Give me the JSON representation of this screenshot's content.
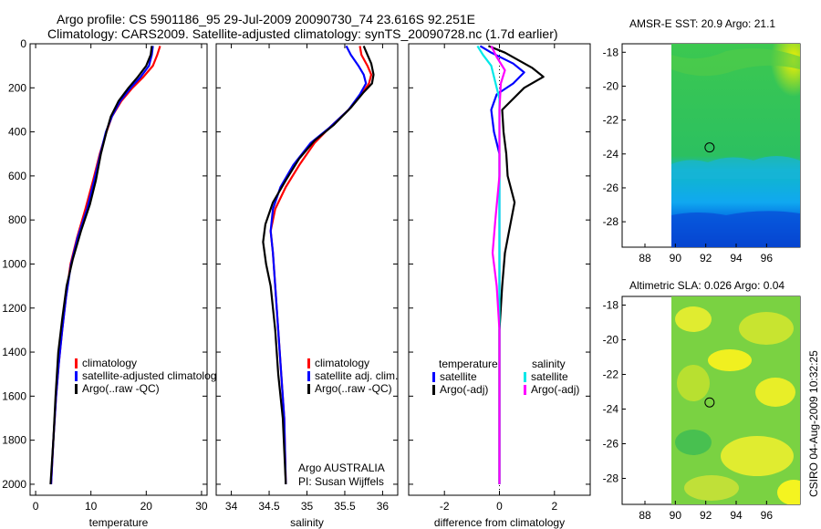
{
  "title": {
    "line1": "Argo profile: CS 5901186_95 29-Jul-2009 20090730_74 23.616S 92.251E",
    "line2": "Climatology: CARS2009. Satellite-adjusted climatology: synTS_20090728.nc (1.7d earlier)"
  },
  "side_stamp": "CSIRO 04-Aug-2009 10:32:25",
  "colors": {
    "red": "#ff0000",
    "blue": "#0000ff",
    "black": "#000000",
    "cyan": "#00e8e8",
    "magenta": "#ff00ff"
  },
  "chart_data": [
    {
      "id": "temperature",
      "type": "line",
      "xlabel": "temperature",
      "xlim": [
        -1,
        31
      ],
      "ylim": [
        2050,
        0
      ],
      "xticks": [
        0,
        10,
        20,
        30
      ],
      "yticks": [
        0,
        200,
        400,
        600,
        800,
        1000,
        1200,
        1400,
        1600,
        1800,
        2000
      ],
      "legend": {
        "placement": "lower-right",
        "entries": [
          {
            "label": "climatology",
            "color": "red"
          },
          {
            "label": "satellite-adjusted climatolog",
            "color": "blue"
          },
          {
            "label": "Argo(..raw -QC)",
            "color": "black"
          }
        ]
      },
      "series": [
        {
          "name": "climatology",
          "color": "red",
          "points": [
            [
              22.5,
              10
            ],
            [
              22.0,
              50
            ],
            [
              21.2,
              100
            ],
            [
              19.5,
              150
            ],
            [
              17.5,
              200
            ],
            [
              15.5,
              260
            ],
            [
              13.8,
              330
            ],
            [
              12.8,
              400
            ],
            [
              11.6,
              500
            ],
            [
              10.4,
              620
            ],
            [
              9.0,
              750
            ],
            [
              7.5,
              880
            ],
            [
              6.3,
              1000
            ],
            [
              5.5,
              1150
            ],
            [
              4.8,
              1300
            ],
            [
              4.2,
              1450
            ],
            [
              3.7,
              1600
            ],
            [
              3.2,
              1800
            ],
            [
              2.8,
              2000
            ]
          ]
        },
        {
          "name": "satellite-adjusted climatology",
          "color": "blue",
          "points": [
            [
              21.2,
              10
            ],
            [
              21.0,
              50
            ],
            [
              20.5,
              100
            ],
            [
              19.0,
              150
            ],
            [
              17.2,
              200
            ],
            [
              15.3,
              260
            ],
            [
              13.8,
              330
            ],
            [
              12.7,
              400
            ],
            [
              11.7,
              500
            ],
            [
              10.6,
              620
            ],
            [
              9.3,
              750
            ],
            [
              7.6,
              880
            ],
            [
              6.4,
              1000
            ],
            [
              5.5,
              1150
            ],
            [
              4.8,
              1300
            ],
            [
              4.2,
              1450
            ],
            [
              3.7,
              1600
            ],
            [
              3.2,
              1800
            ],
            [
              2.8,
              2000
            ]
          ]
        },
        {
          "name": "Argo(..raw -QC)",
          "color": "black",
          "points": [
            [
              21.0,
              10
            ],
            [
              20.8,
              50
            ],
            [
              20.0,
              100
            ],
            [
              18.5,
              150
            ],
            [
              16.8,
              200
            ],
            [
              15.0,
              260
            ],
            [
              13.6,
              330
            ],
            [
              12.8,
              400
            ],
            [
              11.8,
              500
            ],
            [
              10.9,
              620
            ],
            [
              9.8,
              730
            ],
            [
              8.2,
              850
            ],
            [
              6.7,
              980
            ],
            [
              5.6,
              1100
            ],
            [
              4.8,
              1250
            ],
            [
              4.1,
              1400
            ],
            [
              3.6,
              1600
            ],
            [
              3.2,
              1800
            ],
            [
              2.7,
              2000
            ]
          ]
        }
      ]
    },
    {
      "id": "salinity",
      "type": "line",
      "xlabel": "salinity",
      "xlim": [
        33.8,
        36.2
      ],
      "ylim": [
        2050,
        0
      ],
      "xticks": [
        34,
        34.5,
        35,
        35.5,
        36
      ],
      "annotations": [
        "Argo AUSTRALIA",
        "PI: Susan Wijffels"
      ],
      "legend": {
        "placement": "lower-right",
        "entries": [
          {
            "label": "climatology",
            "color": "red"
          },
          {
            "label": "satellite adj. clim.",
            "color": "blue"
          },
          {
            "label": "Argo(..raw -QC)",
            "color": "black"
          }
        ]
      },
      "series": [
        {
          "name": "climatology",
          "color": "red",
          "points": [
            [
              35.7,
              10
            ],
            [
              35.72,
              50
            ],
            [
              35.8,
              100
            ],
            [
              35.85,
              140
            ],
            [
              35.82,
              180
            ],
            [
              35.72,
              230
            ],
            [
              35.55,
              300
            ],
            [
              35.3,
              380
            ],
            [
              35.1,
              450
            ],
            [
              34.9,
              550
            ],
            [
              34.72,
              650
            ],
            [
              34.58,
              750
            ],
            [
              34.52,
              850
            ],
            [
              34.55,
              950
            ],
            [
              34.58,
              1100
            ],
            [
              34.62,
              1300
            ],
            [
              34.66,
              1500
            ],
            [
              34.7,
              1700
            ],
            [
              34.72,
              2000
            ]
          ]
        },
        {
          "name": "satellite adj. clim.",
          "color": "blue",
          "points": [
            [
              35.52,
              10
            ],
            [
              35.58,
              50
            ],
            [
              35.68,
              100
            ],
            [
              35.75,
              140
            ],
            [
              35.78,
              180
            ],
            [
              35.7,
              230
            ],
            [
              35.55,
              300
            ],
            [
              35.3,
              380
            ],
            [
              35.05,
              450
            ],
            [
              34.82,
              550
            ],
            [
              34.65,
              650
            ],
            [
              34.55,
              750
            ],
            [
              34.52,
              850
            ],
            [
              34.55,
              950
            ],
            [
              34.58,
              1100
            ],
            [
              34.62,
              1300
            ],
            [
              34.66,
              1500
            ],
            [
              34.7,
              1700
            ],
            [
              34.72,
              2000
            ]
          ]
        },
        {
          "name": "Argo(..raw -QC)",
          "color": "black",
          "points": [
            [
              35.75,
              10
            ],
            [
              35.8,
              50
            ],
            [
              35.85,
              90
            ],
            [
              35.88,
              140
            ],
            [
              35.86,
              180
            ],
            [
              35.75,
              220
            ],
            [
              35.58,
              290
            ],
            [
              35.35,
              370
            ],
            [
              35.1,
              440
            ],
            [
              34.9,
              520
            ],
            [
              34.72,
              620
            ],
            [
              34.55,
              720
            ],
            [
              34.45,
              820
            ],
            [
              34.42,
              900
            ],
            [
              34.46,
              1000
            ],
            [
              34.52,
              1100
            ],
            [
              34.58,
              1300
            ],
            [
              34.62,
              1500
            ],
            [
              34.68,
              1700
            ],
            [
              34.72,
              2000
            ]
          ]
        }
      ]
    },
    {
      "id": "difference",
      "type": "line",
      "xlabel": "difference from climatology",
      "xlim": [
        -3.3,
        3.3
      ],
      "ylim": [
        2050,
        0
      ],
      "xticks": [
        -2,
        0,
        2
      ],
      "legend": {
        "placement": "lower-middle",
        "headers": [
          "temperature",
          "salinity"
        ],
        "entries": [
          {
            "label": "satellite",
            "color": "blue",
            "group": "temperature"
          },
          {
            "label": "Argo(-adj)",
            "color": "black",
            "group": "temperature"
          },
          {
            "label": "satellite",
            "color": "cyan",
            "group": "salinity"
          },
          {
            "label": "Argo(-adj)",
            "color": "magenta",
            "group": "salinity"
          }
        ]
      },
      "series": [
        {
          "name": "temperature satellite",
          "color": "blue",
          "points": [
            [
              -0.7,
              10
            ],
            [
              -0.3,
              40
            ],
            [
              0.5,
              90
            ],
            [
              0.9,
              130
            ],
            [
              0.5,
              180
            ],
            [
              -0.1,
              230
            ],
            [
              -0.3,
              300
            ],
            [
              -0.2,
              400
            ],
            [
              0.0,
              500
            ],
            [
              0.0,
              700
            ],
            [
              0.0,
              1000
            ],
            [
              0.0,
              1500
            ],
            [
              0.0,
              2000
            ]
          ]
        },
        {
          "name": "temperature Argo(-adj)",
          "color": "black",
          "points": [
            [
              -0.4,
              10
            ],
            [
              0.2,
              40
            ],
            [
              1.2,
              110
            ],
            [
              1.6,
              150
            ],
            [
              0.9,
              200
            ],
            [
              0.1,
              300
            ],
            [
              0.15,
              400
            ],
            [
              0.25,
              500
            ],
            [
              0.3,
              600
            ],
            [
              0.55,
              720
            ],
            [
              0.35,
              850
            ],
            [
              0.2,
              950
            ],
            [
              0.1,
              1100
            ],
            [
              0.0,
              1300
            ],
            [
              0.0,
              1600
            ],
            [
              0.0,
              2000
            ]
          ]
        },
        {
          "name": "salinity satellite",
          "color": "cyan",
          "points": [
            [
              -0.8,
              10
            ],
            [
              -0.6,
              50
            ],
            [
              -0.3,
              100
            ],
            [
              -0.2,
              150
            ],
            [
              0.0,
              250
            ],
            [
              0.0,
              500
            ],
            [
              0.0,
              1000
            ],
            [
              0.0,
              2000
            ]
          ]
        },
        {
          "name": "salinity Argo(-adj)",
          "color": "magenta",
          "points": [
            [
              -0.3,
              10
            ],
            [
              -0.1,
              60
            ],
            [
              0.2,
              120
            ],
            [
              0.05,
              180
            ],
            [
              0.0,
              300
            ],
            [
              0.0,
              600
            ],
            [
              -0.15,
              800
            ],
            [
              -0.25,
              950
            ],
            [
              -0.1,
              1100
            ],
            [
              0.0,
              1300
            ],
            [
              0.0,
              2000
            ]
          ]
        }
      ]
    },
    {
      "id": "amsr-sst",
      "type": "heatmap",
      "title": "AMSR-E SST: 20.9 Argo: 21.1",
      "xlim": [
        86.5,
        98.2
      ],
      "ylim": [
        -29.5,
        -17.5
      ],
      "xticks": [
        88,
        90,
        92,
        94,
        96
      ],
      "yticks": [
        -18,
        -20,
        -22,
        -24,
        -26,
        -28
      ],
      "data_x_range": [
        90,
        98.2
      ],
      "argo_position": {
        "lon": 92.251,
        "lat": -23.616
      },
      "colormap": [
        "#ffff00",
        "#a8e040",
        "#44c844",
        "#20c080",
        "#10a8f0",
        "#0060e0",
        "#0010a0"
      ],
      "bands": [
        {
          "lat_from": -17.5,
          "lat_to": -24.5,
          "level": 2
        },
        {
          "lat_from": -24.5,
          "lat_to": -26.5,
          "level": 3
        },
        {
          "lat_from": -26.5,
          "lat_to": -28.0,
          "level": 4
        },
        {
          "lat_from": -28.0,
          "lat_to": -29.5,
          "level": 5
        }
      ]
    },
    {
      "id": "altimetric-sla",
      "type": "heatmap",
      "title": "Altimetric SLA: 0.026 Argo: 0.04",
      "xlim": [
        86.5,
        98.2
      ],
      "ylim": [
        -29.5,
        -17.5
      ],
      "xticks": [
        88,
        90,
        92,
        94,
        96
      ],
      "yticks": [
        -18,
        -20,
        -22,
        -24,
        -26,
        -28
      ],
      "data_x_range": [
        90,
        98.2
      ],
      "argo_position": {
        "lon": 92.251,
        "lat": -23.616
      },
      "colormap": [
        "#f0f020",
        "#b8e030",
        "#70d040",
        "#40c050"
      ]
    }
  ]
}
